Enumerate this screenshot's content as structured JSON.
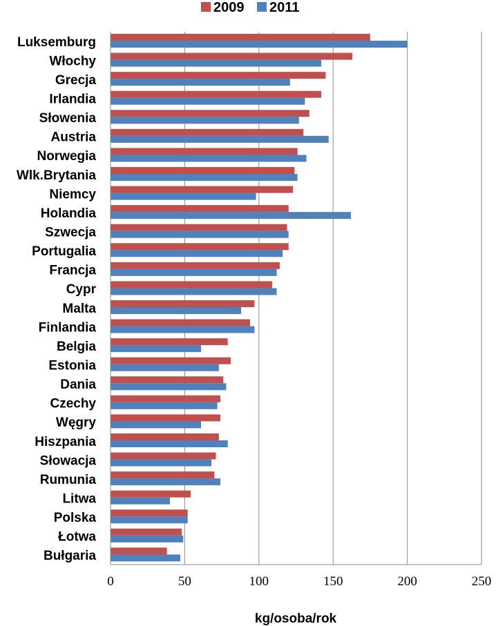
{
  "chart_data": {
    "type": "bar",
    "orientation": "horizontal",
    "categories": [
      "Luksemburg",
      "Włochy",
      "Grecja",
      "Irlandia",
      "Słowenia",
      "Austria",
      "Norwegia",
      "Wlk.Brytania",
      "Niemcy",
      "Holandia",
      "Szwecja",
      "Portugalia",
      "Francja",
      "Cypr",
      "Malta",
      "Finlandia",
      "Belgia",
      "Estonia",
      "Dania",
      "Czechy",
      "Węgry",
      "Hiszpania",
      "Słowacja",
      "Rumunia",
      "Litwa",
      "Polska",
      "Łotwa",
      "Bułgaria"
    ],
    "series": [
      {
        "name": "2009",
        "color": "#c0504d",
        "values": [
          175,
          163,
          145,
          142,
          134,
          130,
          126,
          124,
          123,
          120,
          119,
          120,
          114,
          109,
          97,
          94,
          79,
          81,
          76,
          74,
          74,
          73,
          71,
          70,
          54,
          52,
          48,
          38
        ]
      },
      {
        "name": "2011",
        "color": "#4f81bd",
        "values": [
          200,
          142,
          121,
          131,
          127,
          147,
          132,
          126,
          98,
          162,
          120,
          116,
          112,
          112,
          88,
          97,
          61,
          73,
          78,
          72,
          61,
          79,
          68,
          74,
          40,
          52,
          49,
          47
        ]
      }
    ],
    "xlabel": "kg/osoba/rok",
    "xlim": [
      0,
      250
    ],
    "xticks": [
      "0",
      "50",
      "100",
      "150",
      "200",
      "250"
    ],
    "xtick_values": [
      0,
      50,
      100,
      150,
      200,
      250
    ],
    "grid": "vertical",
    "legend": "top-center"
  }
}
